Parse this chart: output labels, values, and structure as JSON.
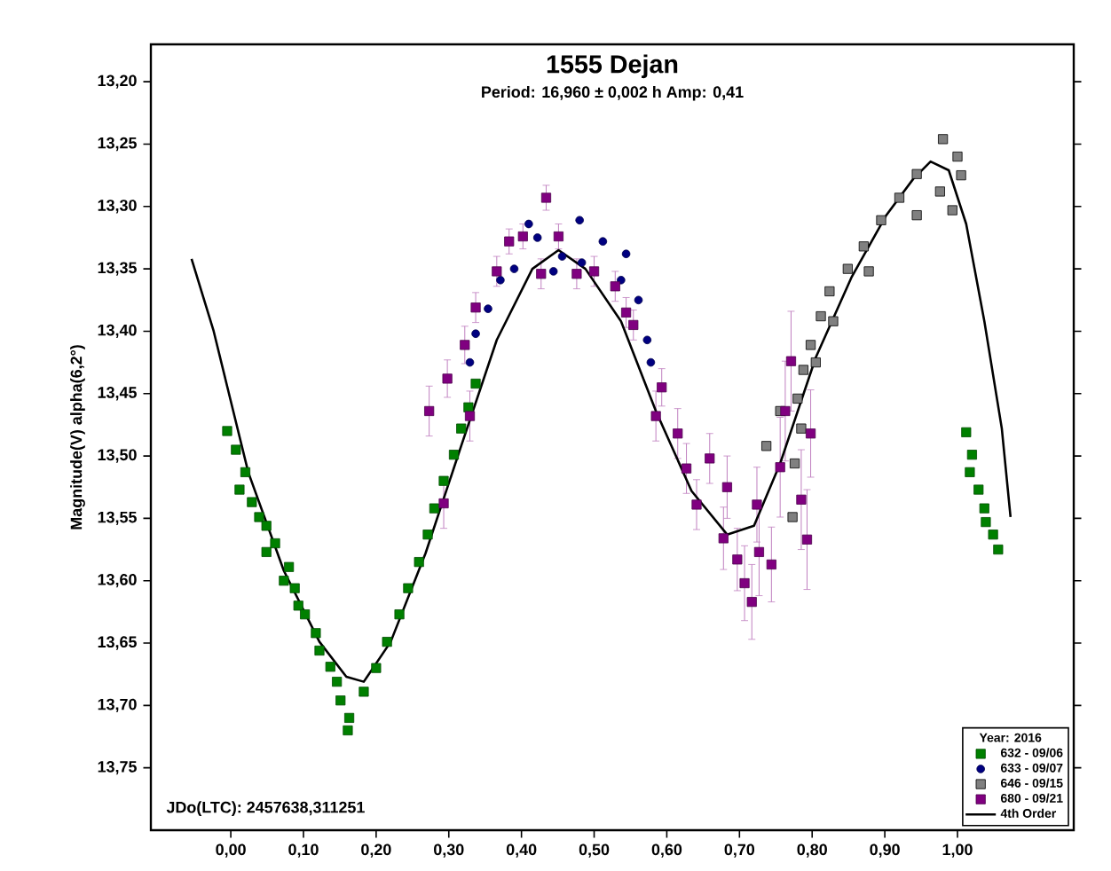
{
  "chart_data": {
    "type": "scatter",
    "title": "1555 Dejan",
    "subtitle": "Period: 16,960 ± 0,002 h   Amp: 0,41",
    "ylabel": "Magnitude(V) alpha(6,2°)",
    "legend_title": "Year: 2016",
    "annotations": [
      "JDo(LTC): 2457638,311251"
    ],
    "xlim": [
      -0.11,
      1.16
    ],
    "ylim": [
      13.8,
      13.17
    ],
    "xticks": [
      {
        "value": 0,
        "label": "0,00"
      },
      {
        "value": 0.1,
        "label": "0,10"
      },
      {
        "value": 0.2,
        "label": "0,20"
      },
      {
        "value": 0.3,
        "label": "0,30"
      },
      {
        "value": 0.4,
        "label": "0,40"
      },
      {
        "value": 0.5,
        "label": "0,50"
      },
      {
        "value": 0.6,
        "label": "0,60"
      },
      {
        "value": 0.7,
        "label": "0,70"
      },
      {
        "value": 0.8,
        "label": "0,80"
      },
      {
        "value": 0.9,
        "label": "0,90"
      },
      {
        "value": 1.0,
        "label": "1,00"
      }
    ],
    "yticks": [
      {
        "value": 13.2,
        "label": "13,20"
      },
      {
        "value": 13.25,
        "label": "13,25"
      },
      {
        "value": 13.3,
        "label": "13,30"
      },
      {
        "value": 13.35,
        "label": "13,35"
      },
      {
        "value": 13.4,
        "label": "13,40"
      },
      {
        "value": 13.45,
        "label": "13,45"
      },
      {
        "value": 13.5,
        "label": "13,50"
      },
      {
        "value": 13.55,
        "label": "13,55"
      },
      {
        "value": 13.6,
        "label": "13,60"
      },
      {
        "value": 13.65,
        "label": "13,65"
      },
      {
        "value": 13.7,
        "label": "13,70"
      },
      {
        "value": 13.75,
        "label": "13,75"
      }
    ],
    "grid": false,
    "legend": "bottom right",
    "series": [
      {
        "name": "632 - 09/06",
        "color": "#008000",
        "marker": "square",
        "x": [
          -0.005,
          0.007,
          0.02,
          0.012,
          0.029,
          0.039,
          0.049,
          0.061,
          0.049,
          0.08,
          0.073,
          0.088,
          0.093,
          0.102,
          0.117,
          0.122,
          0.137,
          0.146,
          0.151,
          0.163,
          0.161,
          0.183,
          0.2,
          0.215,
          0.232,
          0.244,
          0.259,
          0.271,
          0.28,
          0.293,
          0.307,
          0.317,
          0.327,
          0.337,
          1.012,
          1.02,
          1.017,
          1.029,
          1.037,
          1.039,
          1.049,
          1.056
        ],
        "values": [
          13.48,
          13.495,
          13.513,
          13.527,
          13.537,
          13.549,
          13.556,
          13.57,
          13.577,
          13.589,
          13.6,
          13.606,
          13.62,
          13.627,
          13.642,
          13.656,
          13.669,
          13.681,
          13.696,
          13.71,
          13.72,
          13.689,
          13.67,
          13.649,
          13.627,
          13.606,
          13.585,
          13.563,
          13.542,
          13.52,
          13.499,
          13.478,
          13.461,
          13.442,
          13.481,
          13.499,
          13.513,
          13.527,
          13.542,
          13.553,
          13.563,
          13.575
        ]
      },
      {
        "name": "633 - 09/07",
        "color": "#000080",
        "marker": "circle",
        "x": [
          0.329,
          0.337,
          0.354,
          0.371,
          0.39,
          0.41,
          0.422,
          0.444,
          0.456,
          0.48,
          0.483,
          0.512,
          0.537,
          0.544,
          0.561,
          0.573,
          0.578
        ],
        "values": [
          13.425,
          13.402,
          13.382,
          13.359,
          13.35,
          13.314,
          13.325,
          13.352,
          13.34,
          13.311,
          13.345,
          13.328,
          13.359,
          13.338,
          13.375,
          13.407,
          13.425
        ]
      },
      {
        "name": "646 - 09/15",
        "color": "#808080",
        "marker": "square",
        "x": [
          0.737,
          0.756,
          0.773,
          0.776,
          0.78,
          0.785,
          0.788,
          0.798,
          0.805,
          0.812,
          0.824,
          0.829,
          0.849,
          0.871,
          0.878,
          0.895,
          0.92,
          0.944,
          0.944,
          0.976,
          0.98,
          0.993,
          1.0,
          1.005
        ],
        "values": [
          13.492,
          13.464,
          13.549,
          13.506,
          13.454,
          13.478,
          13.431,
          13.411,
          13.425,
          13.388,
          13.368,
          13.392,
          13.35,
          13.332,
          13.352,
          13.311,
          13.293,
          13.274,
          13.307,
          13.288,
          13.246,
          13.303,
          13.26,
          13.275
        ]
      },
      {
        "name": "680 - 09/21",
        "color": "#800080",
        "marker": "square",
        "x": [
          0.273,
          0.293,
          0.298,
          0.322,
          0.329,
          0.337,
          0.366,
          0.383,
          0.402,
          0.427,
          0.434,
          0.451,
          0.476,
          0.5,
          0.529,
          0.544,
          0.554,
          0.585,
          0.593,
          0.615,
          0.627,
          0.641,
          0.659,
          0.678,
          0.683,
          0.697,
          0.707,
          0.717,
          0.724,
          0.727,
          0.744,
          0.756,
          0.763,
          0.771,
          0.785,
          0.793,
          0.798
        ],
        "values": [
          13.464,
          13.538,
          13.438,
          13.411,
          13.468,
          13.381,
          13.352,
          13.328,
          13.324,
          13.354,
          13.293,
          13.324,
          13.354,
          13.352,
          13.364,
          13.385,
          13.395,
          13.468,
          13.445,
          13.482,
          13.51,
          13.539,
          13.502,
          13.566,
          13.525,
          13.583,
          13.602,
          13.617,
          13.539,
          13.577,
          13.587,
          13.509,
          13.464,
          13.424,
          13.535,
          13.567,
          13.482
        ],
        "errors": [
          0.02,
          0.02,
          0.015,
          0.015,
          0.02,
          0.012,
          0.012,
          0.01,
          0.01,
          0.012,
          0.01,
          0.01,
          0.012,
          0.012,
          0.012,
          0.012,
          0.012,
          0.02,
          0.015,
          0.02,
          0.02,
          0.02,
          0.02,
          0.025,
          0.025,
          0.025,
          0.03,
          0.03,
          0.03,
          0.035,
          0.03,
          0.04,
          0.04,
          0.04,
          0.04,
          0.04,
          0.035
        ]
      },
      {
        "name": "4th Order",
        "type": "line",
        "color": "#000000",
        "marker": "none",
        "line_style": "solid",
        "x": [
          -0.054,
          -0.024,
          0.0,
          0.024,
          0.073,
          0.122,
          0.159,
          0.183,
          0.22,
          0.268,
          0.317,
          0.366,
          0.415,
          0.451,
          0.488,
          0.537,
          0.585,
          0.634,
          0.683,
          0.72,
          0.756,
          0.805,
          0.854,
          0.902,
          0.939,
          0.963,
          0.988,
          1.012,
          1.037,
          1.061,
          1.073
        ],
        "values": [
          13.342,
          13.399,
          13.456,
          13.513,
          13.592,
          13.649,
          13.677,
          13.681,
          13.649,
          13.578,
          13.492,
          13.407,
          13.35,
          13.335,
          13.35,
          13.392,
          13.464,
          13.528,
          13.563,
          13.556,
          13.506,
          13.421,
          13.357,
          13.307,
          13.278,
          13.264,
          13.271,
          13.314,
          13.392,
          13.478,
          13.549
        ]
      }
    ]
  }
}
